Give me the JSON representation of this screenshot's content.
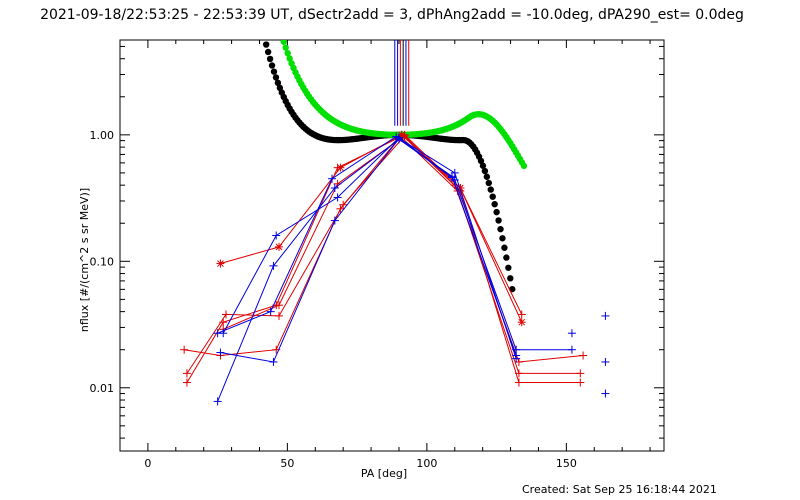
{
  "chart_data": {
    "type": "scatter",
    "title": "2021-09-18/22:53:25 - 22:53:39 UT, dSectr2add = 3, dPhAng2add = -10.0deg, dPA290_est=  0.0deg",
    "xlabel": "PA [deg]",
    "ylabel": "nflux [#/(cm^2 s sr MeV)]",
    "footer": "Created: Sat Sep 25 16:18:44 2021",
    "xlim": [
      -10,
      185
    ],
    "ylim_log10": [
      -2.5,
      0.75
    ],
    "log_y": true,
    "x_ticks": [
      0,
      50,
      100,
      150
    ],
    "x_tick_labels": [
      "0",
      "50",
      "100",
      "150"
    ],
    "y_ticks": [
      0.01,
      0.1,
      1.0
    ],
    "y_tick_labels": [
      "0.01",
      "0.10",
      "1.00"
    ],
    "colors": {
      "red": "#e00000",
      "blue": "#0000e0",
      "green": "#00e000",
      "black": "#000000"
    },
    "fits": [
      {
        "color": "black",
        "x_range": [
          20,
          131
        ],
        "b": -0.85,
        "c": 4.1,
        "d": 2.33,
        "tail_x": 113,
        "tail_slope": -0.0048
      },
      {
        "color": "green",
        "x_range": [
          20,
          135
        ],
        "b": 0.6,
        "c": 3.2,
        "d": 3.3,
        "tail_x": 115,
        "tail_slope": -0.0032
      }
    ],
    "vertical_markers": [
      {
        "x": 88.5,
        "color": "blue"
      },
      {
        "x": 89.5,
        "color": "blue"
      },
      {
        "x": 90.5,
        "color": "red"
      },
      {
        "x": 91.5,
        "color": "black"
      },
      {
        "x": 92.5,
        "color": "blue"
      },
      {
        "x": 93.5,
        "color": "red"
      }
    ],
    "series": [
      {
        "color": "red",
        "symbol": "plus",
        "points": [
          [
            27,
            0.029
          ],
          [
            47,
            0.045
          ],
          [
            68,
            0.41
          ],
          [
            91,
            0.95
          ],
          [
            111,
            0.36
          ],
          [
            133,
            0.013
          ],
          [
            155,
            0.013
          ]
        ]
      },
      {
        "color": "red",
        "symbol": "plus",
        "points": [
          [
            13,
            0.02
          ],
          [
            26,
            0.018
          ],
          [
            46,
            0.02
          ],
          [
            69,
            0.26
          ],
          [
            91,
            1.0
          ],
          [
            112,
            0.36
          ],
          [
            133,
            0.011
          ],
          [
            155,
            0.011
          ]
        ]
      },
      {
        "color": "red",
        "symbol": "plus",
        "points": [
          [
            14,
            0.011
          ],
          [
            27,
            0.033
          ],
          [
            46,
            0.045
          ],
          [
            68,
            0.55
          ],
          [
            92,
            1.0
          ],
          [
            112,
            0.38
          ],
          [
            134,
            0.038
          ]
        ]
      },
      {
        "color": "red",
        "symbol": "plus",
        "points": [
          [
            14,
            0.013
          ],
          [
            28,
            0.038
          ],
          [
            47,
            0.037
          ],
          [
            70,
            0.28
          ],
          [
            92,
            0.98
          ],
          [
            110,
            0.4
          ],
          [
            133,
            0.016
          ],
          [
            156,
            0.018
          ]
        ]
      },
      {
        "color": "red",
        "symbol": "star",
        "points": [
          [
            26,
            0.096
          ],
          [
            47,
            0.13
          ],
          [
            69,
            0.55
          ],
          [
            91,
            1.0
          ],
          [
            112,
            0.38
          ],
          [
            134,
            0.033
          ]
        ]
      },
      {
        "color": "blue",
        "symbol": "plus",
        "points": [
          [
            25,
            0.0078
          ],
          [
            45,
            0.092
          ],
          [
            67,
            0.38
          ],
          [
            90,
            0.92
          ],
          [
            109,
            0.47
          ],
          [
            132,
            0.018
          ]
        ]
      },
      {
        "color": "blue",
        "symbol": "plus",
        "points": [
          [
            26,
            0.019
          ],
          [
            45,
            0.016
          ],
          [
            67,
            0.21
          ],
          [
            90,
            0.93
          ],
          [
            110,
            0.44
          ],
          [
            132,
            0.02
          ],
          [
            152,
            0.02
          ]
        ]
      },
      {
        "color": "blue",
        "symbol": "plus",
        "points": [
          [
            25,
            0.027
          ],
          [
            44,
            0.04
          ],
          [
            66,
            0.45
          ],
          [
            89,
            0.97
          ],
          [
            110,
            0.5
          ],
          [
            132,
            0.017
          ]
        ]
      },
      {
        "color": "blue",
        "symbol": "plus",
        "points": [
          [
            27,
            0.027
          ],
          [
            46,
            0.16
          ],
          [
            68,
            0.32
          ],
          [
            90,
            0.95
          ],
          [
            109,
            0.46
          ]
        ]
      }
    ],
    "isolated_points": [
      {
        "x": 152,
        "y": 0.027,
        "color": "blue"
      },
      {
        "x": 164,
        "y": 0.037,
        "color": "blue"
      },
      {
        "x": 164,
        "y": 0.016,
        "color": "blue"
      },
      {
        "x": 164,
        "y": 0.009,
        "color": "blue"
      }
    ]
  }
}
